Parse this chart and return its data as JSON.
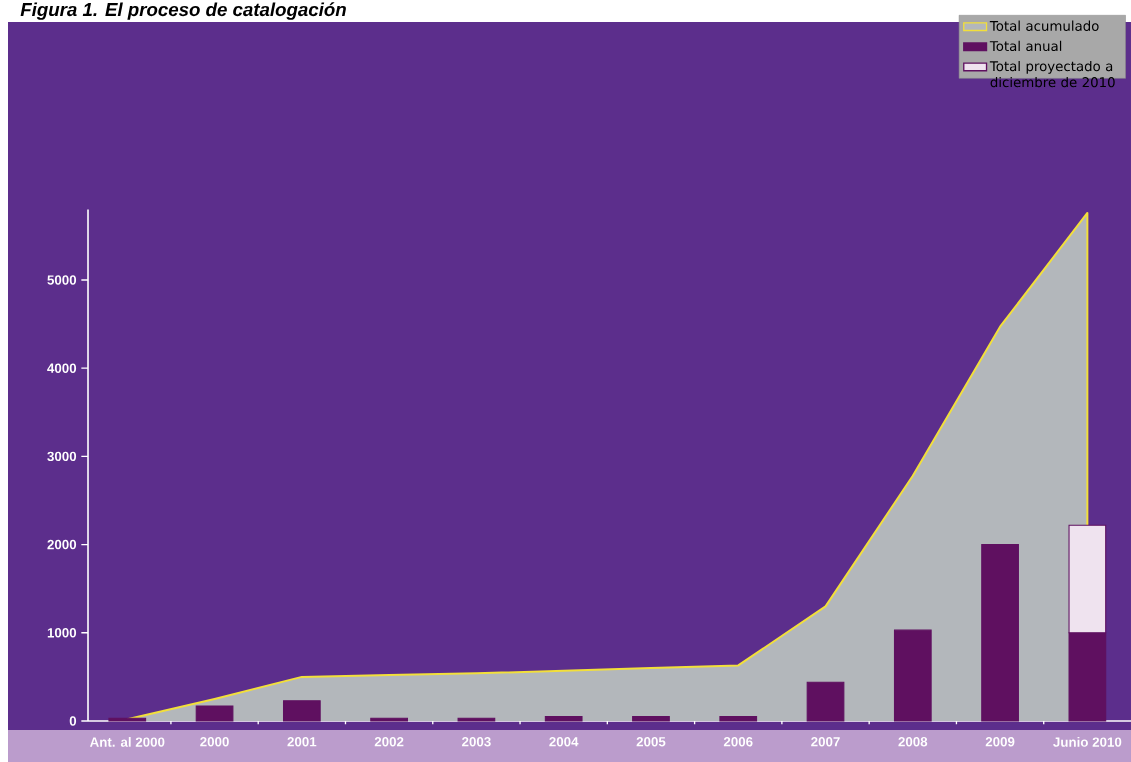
{
  "chart_data": {
    "type": "bar",
    "title": "Figura 1. El proceso de catalogación",
    "categories": [
      "Ant. al 2000",
      "2000",
      "2001",
      "2002",
      "2003",
      "2004",
      "2005",
      "2006",
      "2007",
      "2008",
      "2009",
      "Junio 2010"
    ],
    "series": [
      {
        "name": "Total acumulado",
        "type": "area",
        "color": "#b3b7bb",
        "values": [
          20,
          250,
          500,
          520,
          540,
          570,
          600,
          630,
          1300,
          2780,
          4470,
          5760
        ]
      },
      {
        "name": "Total anual",
        "color": "#5f1060",
        "values": [
          30,
          170,
          230,
          30,
          30,
          50,
          50,
          50,
          440,
          1030,
          2000,
          1000
        ]
      },
      {
        "name": "Total proyectado a diciembre de 2010",
        "color": "#efe3ef",
        "values": [
          null,
          null,
          null,
          null,
          null,
          null,
          null,
          null,
          null,
          null,
          null,
          1220
        ],
        "base": [
          null,
          null,
          null,
          null,
          null,
          null,
          null,
          null,
          null,
          null,
          null,
          1000
        ]
      }
    ],
    "ylim": [
      0,
      5800
    ],
    "yticks": [
      0,
      1000,
      2000,
      3000,
      4000,
      5000
    ],
    "legend": "top right"
  }
}
